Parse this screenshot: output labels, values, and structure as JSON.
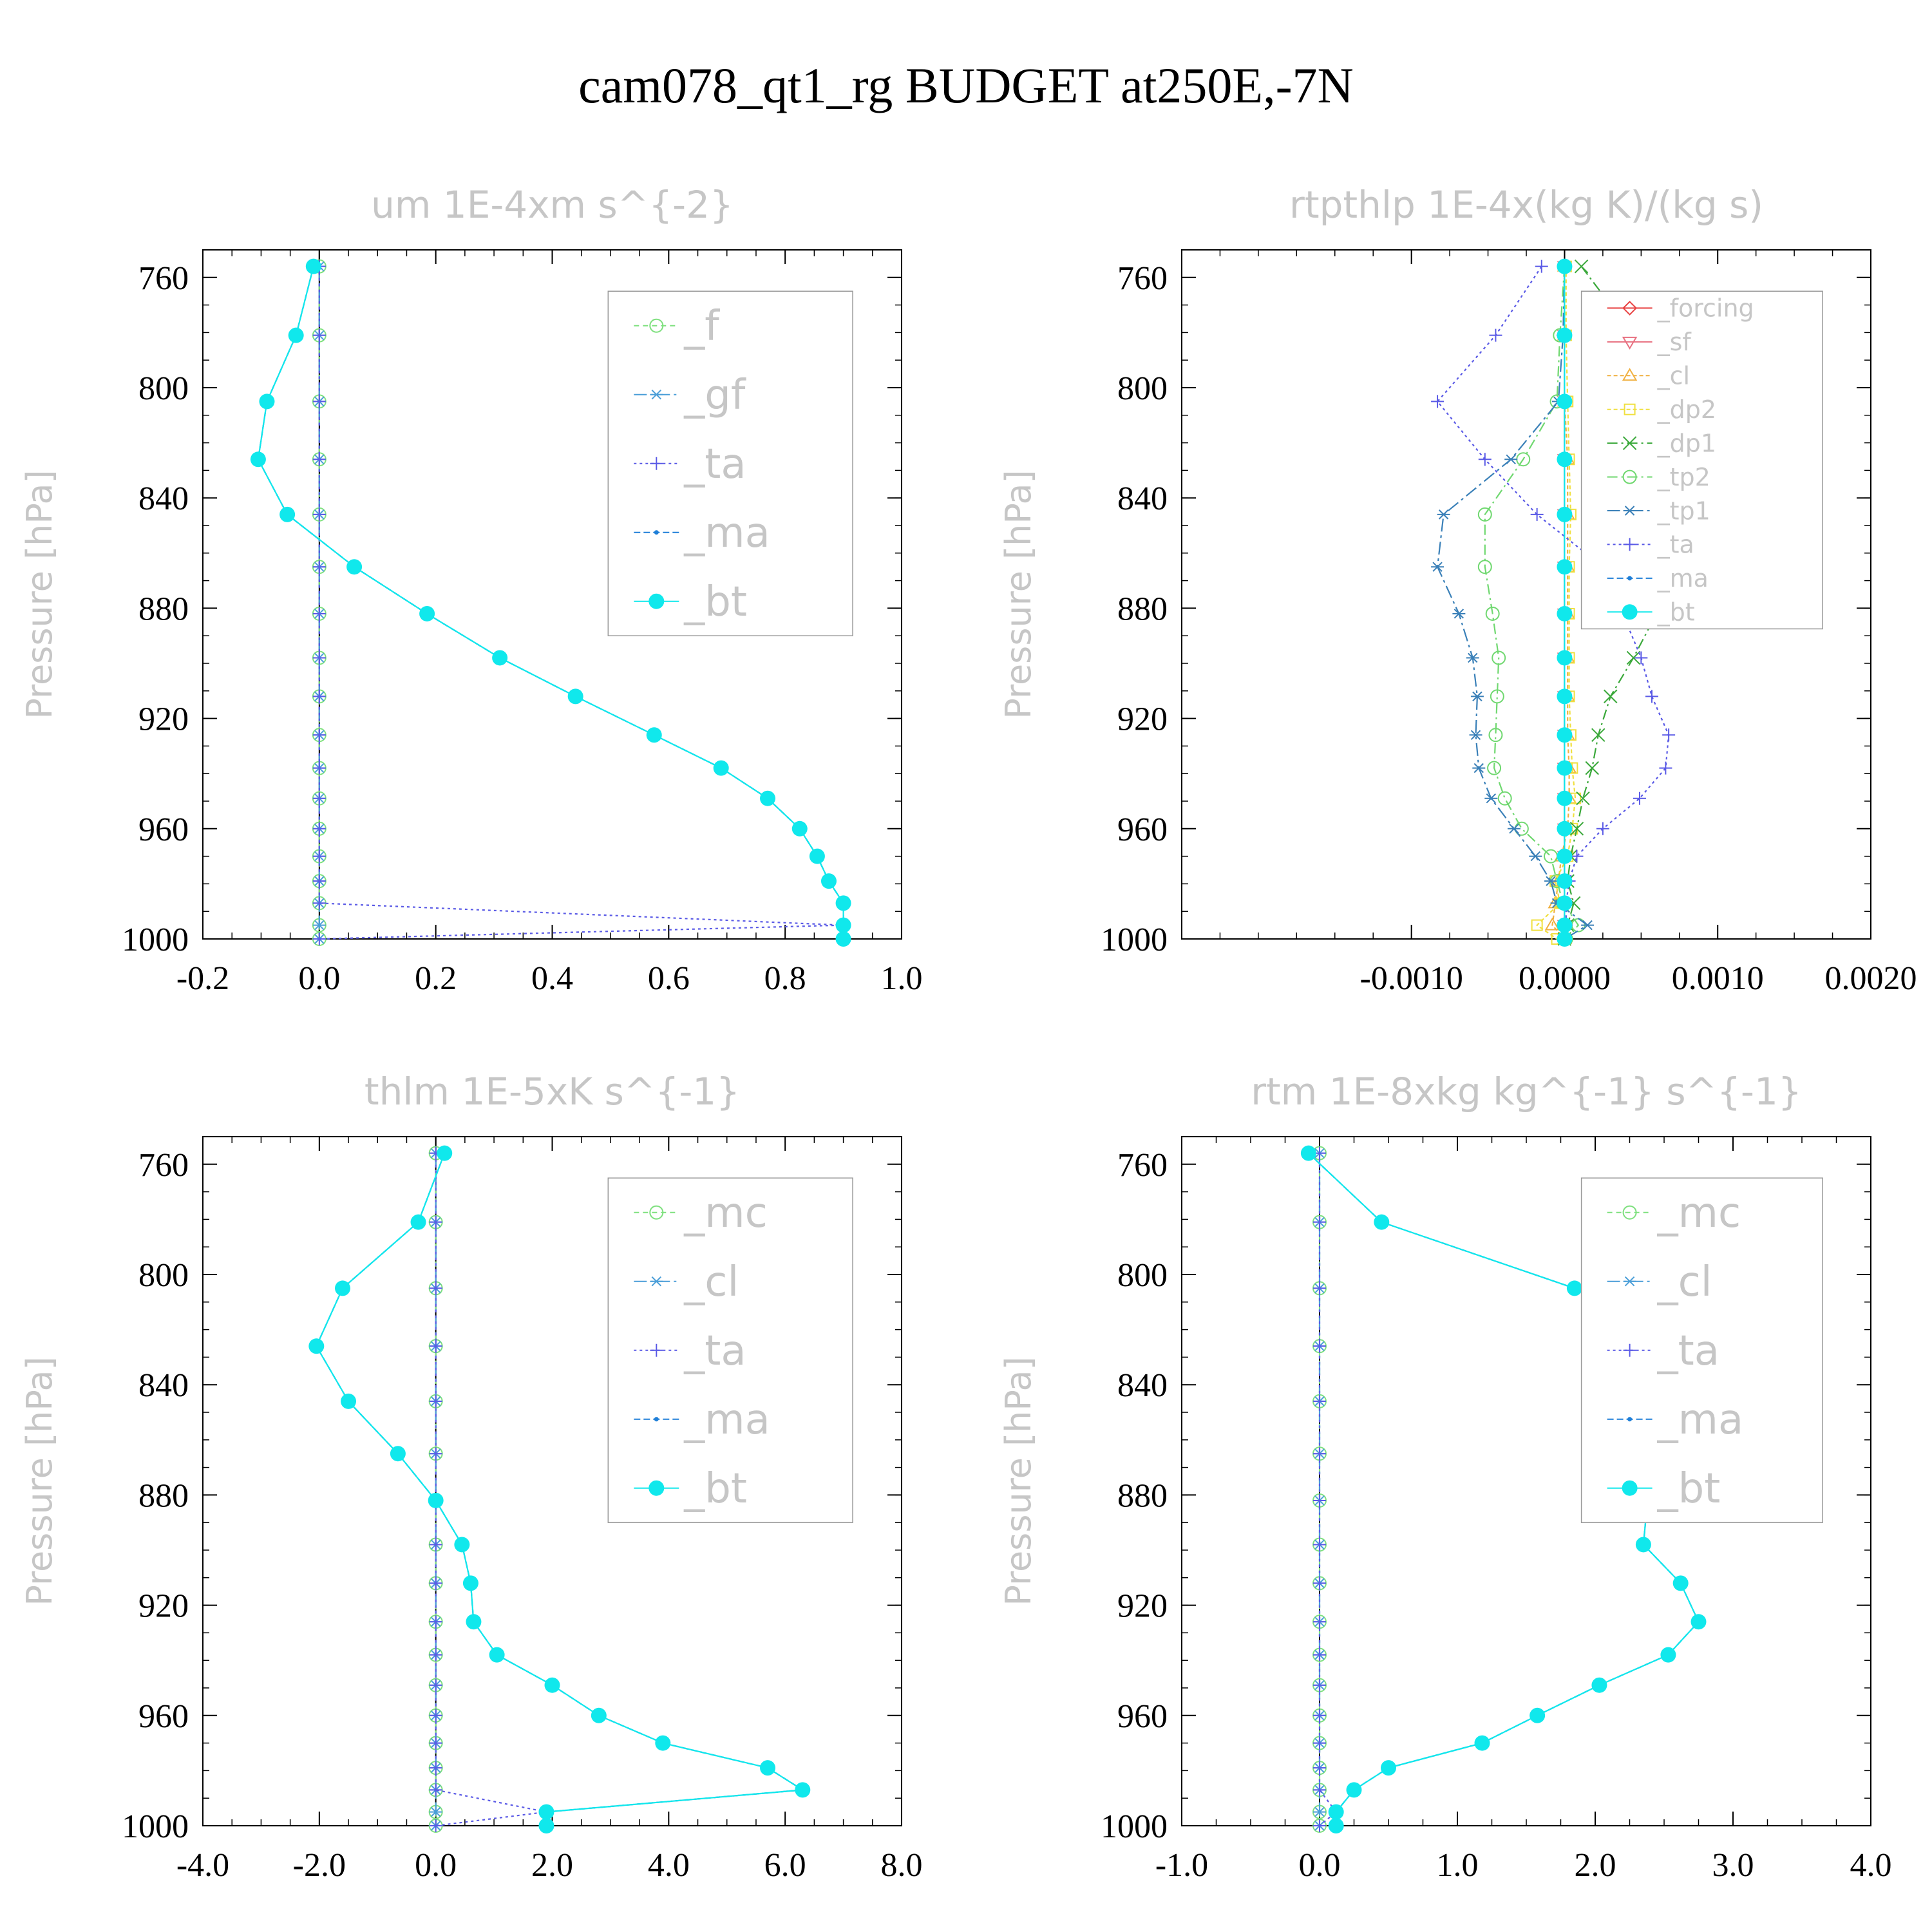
{
  "title": "cam078_qt1_rg  BUDGET at250E,-7N",
  "panels": [
    {
      "id": "um",
      "title": "um   1E-4xm s^{-2}",
      "ylabel": "Pressure [hPa]",
      "xlim": [
        -0.2,
        1.0
      ],
      "xticks": [
        -0.2,
        0.0,
        0.2,
        0.4,
        0.6,
        0.8,
        1.0
      ],
      "xtick_labels": [
        "-0.2",
        "0.0",
        "0.2",
        "0.4",
        "0.6",
        "0.8",
        "1.0"
      ],
      "ylim": [
        750,
        1000
      ],
      "yticks": [
        760,
        800,
        840,
        880,
        920,
        960,
        1000
      ],
      "ytick_labels": [
        "760",
        "800",
        "840",
        "880",
        "920",
        "960",
        "1000"
      ],
      "legend": {
        "box": [
          0.58,
          0.06,
          0.93,
          0.56
        ],
        "font": 64
      }
    },
    {
      "id": "rtpthlp",
      "title": "rtpthlp   1E-4x(kg K)/(kg s)",
      "ylabel": "Pressure [hPa]",
      "xlim": [
        -0.0025,
        0.002
      ],
      "xticks": [
        -0.001,
        0.0,
        0.001,
        0.002
      ],
      "xtick_labels": [
        "-0.0010",
        "0.0000",
        "0.0010",
        "0.0020"
      ],
      "ylim": [
        750,
        1000
      ],
      "yticks": [
        760,
        800,
        840,
        880,
        920,
        960,
        1000
      ],
      "ytick_labels": [
        "760",
        "800",
        "840",
        "880",
        "920",
        "960",
        "1000"
      ],
      "legend": {
        "box": [
          0.58,
          0.06,
          0.93,
          0.55
        ],
        "font": 38
      }
    },
    {
      "id": "thlm",
      "title": "thlm   1E-5xK s^{-1}",
      "ylabel": "Pressure [hPa]",
      "xlim": [
        -4.0,
        8.0
      ],
      "xticks": [
        -4.0,
        -2.0,
        0.0,
        2.0,
        4.0,
        6.0,
        8.0
      ],
      "xtick_labels": [
        "-4.0",
        "-2.0",
        "0.0",
        "2.0",
        "4.0",
        "6.0",
        "8.0"
      ],
      "ylim": [
        750,
        1000
      ],
      "yticks": [
        760,
        800,
        840,
        880,
        920,
        960,
        1000
      ],
      "ytick_labels": [
        "760",
        "800",
        "840",
        "880",
        "920",
        "960",
        "1000"
      ],
      "legend": {
        "box": [
          0.58,
          0.06,
          0.93,
          0.56
        ],
        "font": 64
      }
    },
    {
      "id": "rtm",
      "title": "rtm   1E-8xkg kg^{-1} s^{-1}",
      "ylabel": "Pressure [hPa]",
      "xlim": [
        -1.0,
        4.0
      ],
      "xticks": [
        -1.0,
        0.0,
        1.0,
        2.0,
        3.0,
        4.0
      ],
      "xtick_labels": [
        "-1.0",
        "0.0",
        "1.0",
        "2.0",
        "3.0",
        "4.0"
      ],
      "ylim": [
        750,
        1000
      ],
      "yticks": [
        760,
        800,
        840,
        880,
        920,
        960,
        1000
      ],
      "ytick_labels": [
        "760",
        "800",
        "840",
        "880",
        "920",
        "960",
        "1000"
      ],
      "legend": {
        "box": [
          0.58,
          0.06,
          0.93,
          0.56
        ],
        "font": 64
      }
    }
  ],
  "chart_data": [
    {
      "type": "line",
      "title": "um   1E-4xm s^{-2}",
      "ylabel": "Pressure [hPa]",
      "xlim": [
        -0.2,
        1.0
      ],
      "ylim": [
        1000,
        750
      ],
      "grid": false,
      "legend_position": "top-right",
      "pressure_levels": [
        756,
        781,
        805,
        826,
        846,
        865,
        882,
        898,
        912,
        926,
        938,
        949,
        960,
        970,
        979,
        987,
        995,
        1000
      ],
      "series": [
        {
          "name": "_f",
          "color": "#7fe07f",
          "marker": "circle-open",
          "dash": "8,6",
          "values": [
            0,
            0,
            0,
            0,
            0,
            0,
            0,
            0,
            0,
            0,
            0,
            0,
            0,
            0,
            0,
            0,
            0,
            0
          ]
        },
        {
          "name": "_gf",
          "color": "#4a9ed8",
          "marker": "asterisk",
          "dash": "20,6,4,6",
          "values": [
            0,
            0,
            0,
            0,
            0,
            0,
            0,
            0,
            0,
            0,
            0,
            0,
            0,
            0,
            0,
            0,
            0,
            0
          ]
        },
        {
          "name": "_ta",
          "color": "#5a5ae6",
          "marker": "plus",
          "dash": "4,5",
          "values": [
            0,
            0,
            0,
            0,
            0,
            0,
            0,
            0,
            0,
            0,
            0,
            0,
            0,
            0,
            0,
            0,
            0.9,
            0
          ]
        },
        {
          "name": "_ma",
          "color": "#1f7fd8",
          "marker": "dot",
          "dash": "10,5",
          "values": [
            -0.01,
            -0.04,
            -0.09,
            -0.105,
            -0.055,
            0.06,
            0.185,
            0.31,
            0.44,
            0.575,
            0.69,
            0.77,
            0.825,
            0.855,
            0.875,
            0.9,
            0.9,
            0.9
          ]
        },
        {
          "name": "_bt",
          "color": "#10e8ec",
          "marker": "filled-circle",
          "dash": "none",
          "values": [
            -0.01,
            -0.04,
            -0.09,
            -0.105,
            -0.055,
            0.06,
            0.185,
            0.31,
            0.44,
            0.575,
            0.69,
            0.77,
            0.825,
            0.855,
            0.875,
            0.9,
            0.9,
            0.9
          ]
        }
      ]
    },
    {
      "type": "line",
      "title": "rtpthlp   1E-4x(kg K)/(kg s)",
      "ylabel": "Pressure [hPa]",
      "xlim": [
        -0.0025,
        0.002
      ],
      "ylim": [
        1000,
        750
      ],
      "grid": false,
      "legend_position": "top-right",
      "pressure_levels": [
        756,
        781,
        805,
        826,
        846,
        865,
        882,
        898,
        912,
        926,
        938,
        949,
        960,
        970,
        979,
        987,
        995,
        1000
      ],
      "series": [
        {
          "name": "_forcing",
          "color": "#e84040",
          "marker": "diamond-open",
          "dash": "none",
          "values": [
            0,
            0,
            0,
            0,
            0,
            0,
            0,
            0,
            0,
            0,
            0,
            0,
            0,
            0,
            0,
            0,
            0,
            0
          ]
        },
        {
          "name": "_sf",
          "color": "#e87080",
          "marker": "triangle-down",
          "dash": "none",
          "values": [
            0,
            0,
            0,
            0,
            0,
            0,
            0,
            0,
            0,
            0,
            0,
            0,
            0,
            0,
            0,
            0,
            0,
            0
          ]
        },
        {
          "name": "_cl",
          "color": "#f0b040",
          "marker": "triangle-open",
          "dash": "6,4",
          "values": [
            0,
            0,
            0,
            2e-05,
            2e-05,
            2e-05,
            2e-05,
            2e-05,
            2e-05,
            2e-05,
            3e-05,
            3e-05,
            2e-05,
            -2e-05,
            -4e-05,
            -6e-05,
            -8e-05,
            0
          ]
        },
        {
          "name": "_dp2",
          "color": "#f0e040",
          "marker": "square-open",
          "dash": "6,4",
          "values": [
            1e-05,
            1e-05,
            2e-05,
            3e-05,
            4e-05,
            3e-05,
            3e-05,
            3e-05,
            3e-05,
            4e-05,
            5e-05,
            7e-05,
            5e-05,
            2e-05,
            -6e-05,
            -3e-05,
            -0.00018,
            -5e-05
          ]
        },
        {
          "name": "_dp1",
          "color": "#3aa83a",
          "marker": "x",
          "dash": "16,6,3,6",
          "values": [
            0.00011,
            0.00045,
            0.00095,
            0.0014,
            0.0014,
            0.00095,
            0.0006,
            0.00045,
            0.0003,
            0.00022,
            0.00018,
            0.00012,
            8e-05,
            4e-05,
            2e-05,
            6e-05,
            2e-05,
            0
          ]
        },
        {
          "name": "_tp2",
          "color": "#70d870",
          "marker": "circle-open",
          "dash": "16,6,3,6",
          "values": [
            0,
            -3e-05,
            -5e-05,
            -0.00027,
            -0.00052,
            -0.00052,
            -0.00047,
            -0.00043,
            -0.00044,
            -0.00045,
            -0.00046,
            -0.00039,
            -0.00028,
            -9e-05,
            -5e-05,
            -1e-05,
            9e-05,
            1e-05
          ]
        },
        {
          "name": "_tp1",
          "color": "#3a80b8",
          "marker": "asterisk",
          "dash": "20,6,4,6",
          "values": [
            0,
            -1e-05,
            -4e-05,
            -0.00035,
            -0.00079,
            -0.00083,
            -0.00069,
            -0.0006,
            -0.00057,
            -0.00058,
            -0.00056,
            -0.00048,
            -0.00033,
            -0.00019,
            -9e-05,
            -5e-05,
            0.00015,
            0
          ]
        },
        {
          "name": "_ta",
          "color": "#5a5ae6",
          "marker": "plus",
          "dash": "4,5",
          "values": [
            -0.00015,
            -0.00045,
            -0.00083,
            -0.00052,
            -0.00018,
            0.00025,
            0.00038,
            0.0005,
            0.00057,
            0.00068,
            0.00066,
            0.00049,
            0.00025,
            8e-05,
            3e-05,
            1e-05,
            1e-05,
            0
          ]
        },
        {
          "name": "_ma",
          "color": "#1f7fd8",
          "marker": "dot",
          "dash": "10,5",
          "values": [
            0,
            0,
            0,
            0,
            0,
            0,
            0,
            0,
            0,
            0,
            0,
            0,
            0,
            0,
            0,
            0,
            0,
            0
          ]
        },
        {
          "name": "_bt",
          "color": "#10e8ec",
          "marker": "filled-circle",
          "dash": "none",
          "values": [
            0,
            0,
            0,
            0,
            0,
            0,
            0,
            0,
            0,
            0,
            0,
            0,
            0,
            0,
            0,
            0,
            0,
            0
          ]
        }
      ]
    },
    {
      "type": "line",
      "title": "thlm   1E-5xK s^{-1}",
      "ylabel": "Pressure [hPa]",
      "xlim": [
        -4.0,
        8.0
      ],
      "ylim": [
        1000,
        750
      ],
      "grid": false,
      "legend_position": "top-right",
      "pressure_levels": [
        756,
        781,
        805,
        826,
        846,
        865,
        882,
        898,
        912,
        926,
        938,
        949,
        960,
        970,
        979,
        987,
        995,
        1000
      ],
      "series": [
        {
          "name": "_mc",
          "color": "#7fe07f",
          "marker": "circle-open",
          "dash": "8,6",
          "values": [
            0,
            0,
            0,
            0,
            0,
            0,
            0,
            0,
            0,
            0,
            0,
            0,
            0,
            0,
            0,
            0,
            0,
            0
          ]
        },
        {
          "name": "_cl",
          "color": "#4a9ed8",
          "marker": "asterisk",
          "dash": "20,6,4,6",
          "values": [
            0,
            0,
            0,
            0,
            0,
            0,
            0,
            0,
            0,
            0,
            0,
            0,
            0,
            0,
            0,
            0,
            0,
            0
          ]
        },
        {
          "name": "_ta",
          "color": "#5a5ae6",
          "marker": "plus",
          "dash": "4,5",
          "values": [
            0,
            0,
            0,
            0,
            0,
            0,
            0,
            0,
            0,
            0,
            0,
            0,
            0,
            0,
            0,
            0,
            1.9,
            0
          ]
        },
        {
          "name": "_ma",
          "color": "#1f7fd8",
          "marker": "dot",
          "dash": "10,5",
          "values": [
            0.15,
            -0.3,
            -1.6,
            -2.05,
            -1.5,
            -0.65,
            0.0,
            0.45,
            0.6,
            0.65,
            1.05,
            2.0,
            2.8,
            3.9,
            5.7,
            6.3,
            1.9,
            1.9
          ]
        },
        {
          "name": "_bt",
          "color": "#10e8ec",
          "marker": "filled-circle",
          "dash": "none",
          "values": [
            0.15,
            -0.3,
            -1.6,
            -2.05,
            -1.5,
            -0.65,
            0.0,
            0.45,
            0.6,
            0.65,
            1.05,
            2.0,
            2.8,
            3.9,
            5.7,
            6.3,
            1.9,
            1.9
          ]
        }
      ]
    },
    {
      "type": "line",
      "title": "rtm   1E-8xkg kg^{-1} s^{-1}",
      "ylabel": "Pressure [hPa]",
      "xlim": [
        -1.0,
        4.0
      ],
      "ylim": [
        1000,
        750
      ],
      "grid": false,
      "legend_position": "top-right",
      "pressure_levels": [
        756,
        781,
        805,
        826,
        846,
        865,
        882,
        898,
        912,
        926,
        938,
        949,
        960,
        970,
        979,
        987,
        995,
        1000
      ],
      "series": [
        {
          "name": "_mc",
          "color": "#7fe07f",
          "marker": "circle-open",
          "dash": "8,6",
          "values": [
            0,
            0,
            0,
            0,
            0,
            0,
            0,
            0,
            0,
            0,
            0,
            0,
            0,
            0,
            0,
            0,
            0,
            0
          ]
        },
        {
          "name": "_cl",
          "color": "#4a9ed8",
          "marker": "asterisk",
          "dash": "20,6,4,6",
          "values": [
            0,
            0,
            0,
            0,
            0,
            0,
            0,
            0,
            0,
            0,
            0,
            0,
            0,
            0,
            0,
            0,
            0,
            0
          ]
        },
        {
          "name": "_ta",
          "color": "#5a5ae6",
          "marker": "plus",
          "dash": "4,5",
          "values": [
            0,
            0,
            0,
            0,
            0,
            0,
            0,
            0,
            0,
            0,
            0,
            0,
            0,
            0,
            0,
            0,
            0.12,
            0
          ]
        },
        {
          "name": "_ma",
          "color": "#1f7fd8",
          "marker": "dot",
          "dash": "10,5",
          "values": [
            -0.08,
            0.45,
            1.85,
            3.3,
            3.57,
            2.85,
            2.38,
            2.35,
            2.62,
            2.75,
            2.53,
            2.03,
            1.58,
            1.18,
            0.5,
            0.25,
            0.12,
            0.12
          ]
        },
        {
          "name": "_bt",
          "color": "#10e8ec",
          "marker": "filled-circle",
          "dash": "none",
          "values": [
            -0.08,
            0.45,
            1.85,
            3.3,
            3.57,
            2.85,
            2.38,
            2.35,
            2.62,
            2.75,
            2.53,
            2.03,
            1.58,
            1.18,
            0.5,
            0.25,
            0.12,
            0.12
          ]
        }
      ]
    }
  ]
}
